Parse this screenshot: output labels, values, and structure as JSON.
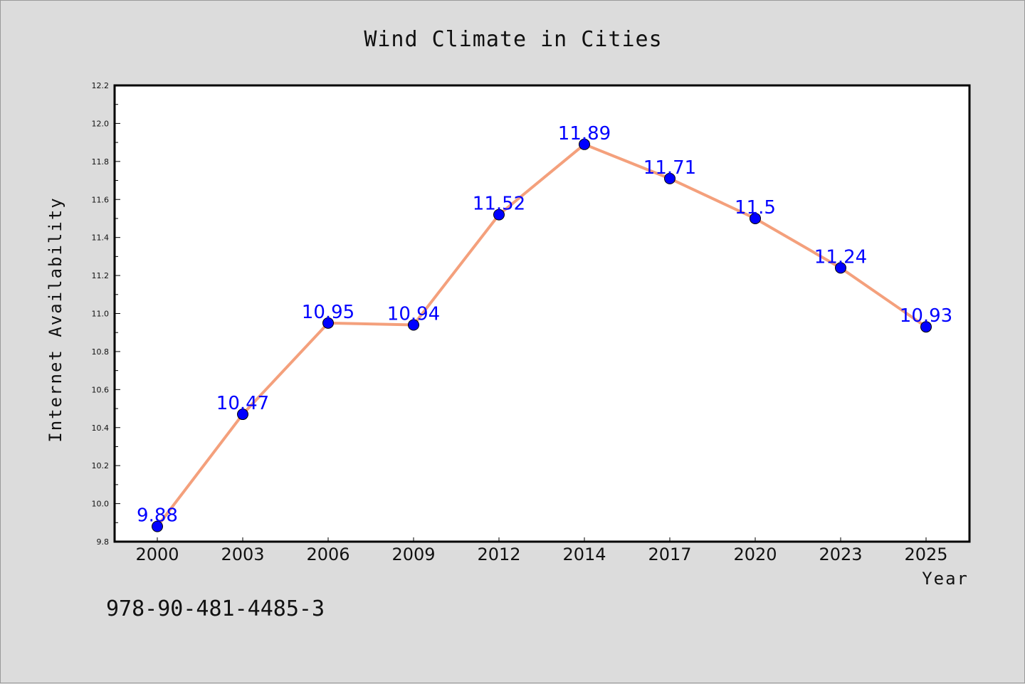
{
  "chart_data": {
    "type": "line",
    "title": "Wind Climate in Cities",
    "xlabel": "Year",
    "ylabel": "Internet Availability",
    "categories": [
      "2000",
      "2003",
      "2006",
      "2009",
      "2012",
      "2014",
      "2017",
      "2020",
      "2023",
      "2025"
    ],
    "series": [
      {
        "values": [
          9.88,
          10.47,
          10.95,
          10.94,
          11.52,
          11.89,
          11.71,
          11.5,
          11.24,
          10.93
        ],
        "labels": [
          "9.88",
          "10.47",
          "10.95",
          "10.94",
          "11.52",
          "11.89",
          "11.71",
          "11.5",
          "11.24",
          "10.93"
        ]
      }
    ],
    "ylim": [
      9.8,
      12.2
    ],
    "yticks": [
      "9.8",
      "10.0",
      "10.2",
      "10.4",
      "10.6",
      "10.8",
      "11.0",
      "11.2",
      "11.4",
      "11.6",
      "11.8",
      "12.0",
      "12.2"
    ],
    "grid": false,
    "legend": "none",
    "colors": {
      "line": "#f4a07c",
      "marker": "#0000ff",
      "label": "#0000ff",
      "background": "#dcdcdc",
      "plot_bg": "#ffffff"
    }
  },
  "annotation": "978-90-481-4485-3"
}
